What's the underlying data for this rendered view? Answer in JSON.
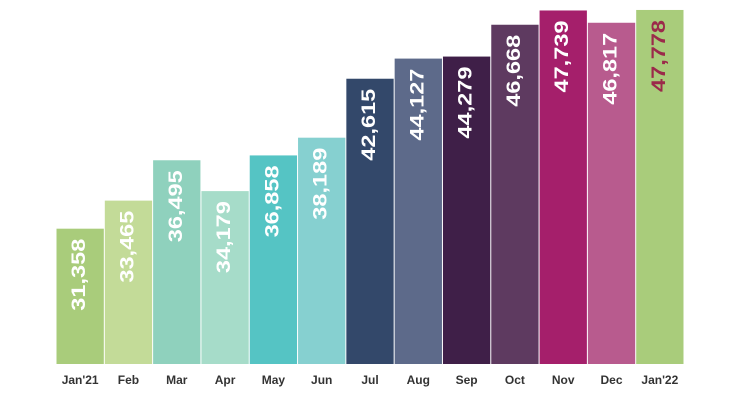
{
  "chart_data": {
    "type": "bar",
    "categories": [
      "Jan'21",
      "Feb",
      "Mar",
      "Apr",
      "May",
      "Jun",
      "Jul",
      "Aug",
      "Sep",
      "Oct",
      "Nov",
      "Dec",
      "Jan'22"
    ],
    "values": [
      31358,
      33465,
      36495,
      34179,
      36858,
      38189,
      42615,
      44127,
      44279,
      46668,
      47739,
      46817,
      47778
    ],
    "value_labels": [
      "31,358",
      "33,465",
      "36,495",
      "34,179",
      "36,858",
      "38,189",
      "42,615",
      "44,127",
      "44,279",
      "46,668",
      "47,739",
      "46,817",
      "47,778"
    ],
    "colors": [
      "#a9cc7b",
      "#c3db98",
      "#8fd1bd",
      "#a6dcc9",
      "#55c4c4",
      "#86d0d0",
      "#33486a",
      "#5d6a8a",
      "#3f1f48",
      "#5e3a60",
      "#a51f6b",
      "#b85b8e",
      "#a9cc7b"
    ],
    "label_colors": [
      "#ffffff",
      "#ffffff",
      "#ffffff",
      "#ffffff",
      "#ffffff",
      "#ffffff",
      "#ffffff",
      "#ffffff",
      "#ffffff",
      "#ffffff",
      "#ffffff",
      "#ffffff",
      "#9b2a4a"
    ],
    "ylim": [
      21200,
      48000
    ]
  }
}
